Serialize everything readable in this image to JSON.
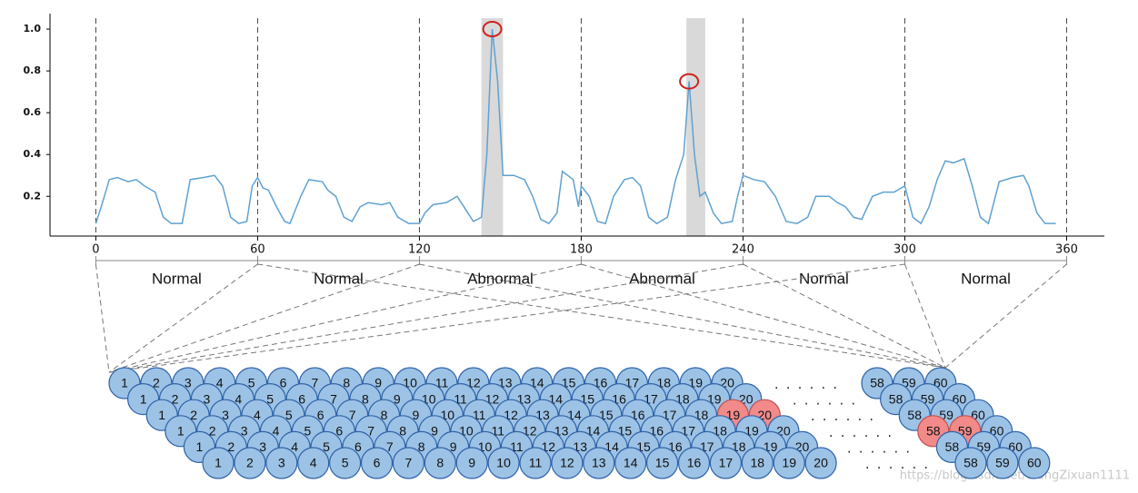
{
  "chart_data": {
    "type": "line",
    "x": [
      0,
      2,
      5,
      8,
      12,
      15,
      18,
      22,
      25,
      28,
      32,
      35,
      40,
      44,
      47,
      50,
      53,
      56,
      58,
      60,
      62,
      64,
      67,
      70,
      72,
      76,
      79,
      84,
      86,
      89,
      92,
      95,
      98,
      101,
      106,
      109,
      112,
      116,
      120,
      122,
      125,
      130,
      134,
      137,
      140,
      143,
      145,
      147,
      149,
      151,
      155,
      159,
      162,
      165,
      168,
      171,
      173,
      177,
      179,
      180,
      183,
      186,
      189,
      192,
      196,
      199,
      202,
      205,
      208,
      212,
      215,
      218,
      220,
      222,
      224,
      226,
      229,
      232,
      236,
      238,
      240,
      244,
      248,
      252,
      256,
      260,
      264,
      267,
      272,
      275,
      278,
      281,
      284,
      288,
      292,
      296,
      300,
      303,
      306,
      309,
      312,
      315,
      318,
      322,
      325,
      328,
      331,
      335,
      340,
      344,
      346,
      349,
      352,
      356
    ],
    "series": [
      {
        "color": "#5fa2d2",
        "values": [
          0.07,
          0.15,
          0.28,
          0.29,
          0.27,
          0.28,
          0.25,
          0.22,
          0.1,
          0.07,
          0.07,
          0.28,
          0.29,
          0.3,
          0.25,
          0.1,
          0.07,
          0.08,
          0.25,
          0.29,
          0.24,
          0.23,
          0.15,
          0.08,
          0.07,
          0.2,
          0.28,
          0.27,
          0.23,
          0.2,
          0.1,
          0.08,
          0.15,
          0.17,
          0.16,
          0.17,
          0.1,
          0.07,
          0.07,
          0.12,
          0.16,
          0.17,
          0.2,
          0.14,
          0.08,
          0.1,
          0.4,
          1.0,
          0.75,
          0.3,
          0.3,
          0.28,
          0.2,
          0.09,
          0.07,
          0.12,
          0.32,
          0.28,
          0.15,
          0.25,
          0.2,
          0.08,
          0.07,
          0.2,
          0.28,
          0.29,
          0.25,
          0.1,
          0.07,
          0.1,
          0.28,
          0.4,
          0.75,
          0.4,
          0.2,
          0.22,
          0.12,
          0.07,
          0.08,
          0.2,
          0.3,
          0.28,
          0.27,
          0.2,
          0.08,
          0.07,
          0.1,
          0.2,
          0.2,
          0.17,
          0.15,
          0.1,
          0.09,
          0.2,
          0.22,
          0.22,
          0.25,
          0.1,
          0.07,
          0.15,
          0.28,
          0.37,
          0.36,
          0.38,
          0.25,
          0.1,
          0.07,
          0.27,
          0.29,
          0.3,
          0.25,
          0.12,
          0.07,
          0.07
        ]
      }
    ],
    "xlim": [
      -17,
      374
    ],
    "ylim": [
      0.01,
      1.074
    ],
    "xticks": [
      0,
      60,
      120,
      180,
      240,
      300,
      360
    ],
    "yticks": [
      0.2,
      0.4,
      0.6,
      0.8,
      {
        "value": 1,
        "label": "1.0"
      }
    ],
    "highlight_spans": [
      [
        143,
        151
      ],
      [
        219,
        226
      ]
    ],
    "peaks": [
      {
        "x": 147,
        "y": 1.0
      },
      {
        "x": 220,
        "y": 0.75
      }
    ],
    "segments": [
      "Normal",
      "Normal",
      "Abnormal",
      "Abnormal",
      "Normal",
      "Normal"
    ]
  },
  "sequence": {
    "ellipsis": ". . . . . .",
    "rows": [
      {
        "main": [
          1,
          2,
          3,
          4,
          5,
          6,
          7,
          8,
          9,
          10,
          11,
          12,
          13,
          14,
          15,
          16,
          17,
          18,
          19,
          20
        ],
        "tail": [
          58,
          59,
          60
        ],
        "highlight": []
      },
      {
        "main": [
          1,
          2,
          3,
          4,
          5,
          6,
          7,
          8,
          9,
          10,
          11,
          12,
          13,
          14,
          15,
          16,
          17,
          18,
          19,
          20
        ],
        "tail": [
          58,
          59,
          60
        ],
        "highlight": []
      },
      {
        "main": [
          1,
          2,
          3,
          4,
          5,
          6,
          7,
          8,
          9,
          10,
          11,
          12,
          13,
          14,
          15,
          16,
          17,
          18,
          19,
          20
        ],
        "tail": [
          58,
          59,
          60
        ],
        "highlight": [
          19,
          20
        ]
      },
      {
        "main": [
          1,
          2,
          3,
          4,
          5,
          6,
          7,
          8,
          9,
          10,
          11,
          12,
          13,
          14,
          15,
          16,
          17,
          18,
          19,
          20
        ],
        "tail": [
          58,
          59,
          60
        ],
        "highlight": [
          58,
          59
        ]
      },
      {
        "main": [
          1,
          2,
          3,
          4,
          5,
          6,
          7,
          8,
          9,
          10,
          11,
          12,
          13,
          14,
          15,
          16,
          17,
          18,
          19,
          20
        ],
        "tail": [
          58,
          59,
          60
        ],
        "highlight": []
      },
      {
        "main": [
          1,
          2,
          3,
          4,
          5,
          6,
          7,
          8,
          9,
          10,
          11,
          12,
          13,
          14,
          15,
          16,
          17,
          18,
          19,
          20
        ],
        "tail": [
          58,
          59,
          60
        ],
        "highlight": []
      }
    ]
  },
  "watermark": "https://blog.csdn.net/WangZixuan1111"
}
